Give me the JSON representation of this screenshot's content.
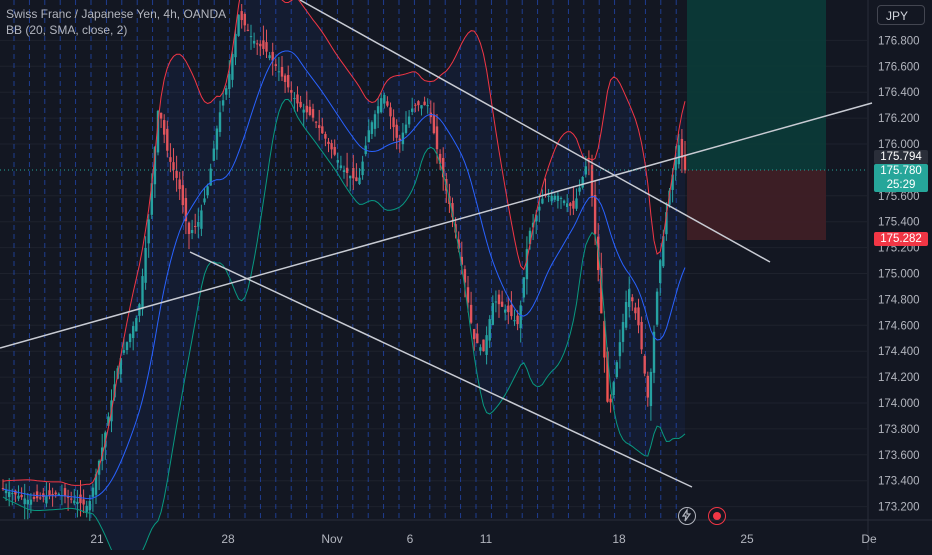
{
  "legend": {
    "symbol": "Swiss Franc / Japanese Yen, 4h, OANDA",
    "indicator": "BB (20, SMA, close, 2)"
  },
  "currency_button": "JPY",
  "chart_data": {
    "type": "candlestick",
    "title": "Swiss Franc / Japanese Yen, 4h, OANDA",
    "y_axis_ticks": [
      "176.800",
      "176.600",
      "176.400",
      "176.200",
      "176.000",
      "175.600",
      "175.400",
      "175.200",
      "175.000",
      "174.800",
      "174.600",
      "174.400",
      "174.200",
      "174.000",
      "173.800",
      "173.600",
      "173.400",
      "173.200"
    ],
    "x_axis_ticks": [
      "21",
      "28",
      "Nov",
      "6",
      "11",
      "18",
      "25",
      "De"
    ],
    "ylim": [
      173.1,
      177.15
    ],
    "price_labels": {
      "upper": "175.794",
      "current": "175.780",
      "countdown": "25:29",
      "lower": "175.282"
    },
    "colors": {
      "up": "#26a69a",
      "down": "#ef5350",
      "bb_upper": "#f23645",
      "bb_basis": "#2962ff",
      "bb_lower": "#089981"
    }
  },
  "icons": {
    "replay": "lightning-icon",
    "record": "record-icon"
  }
}
